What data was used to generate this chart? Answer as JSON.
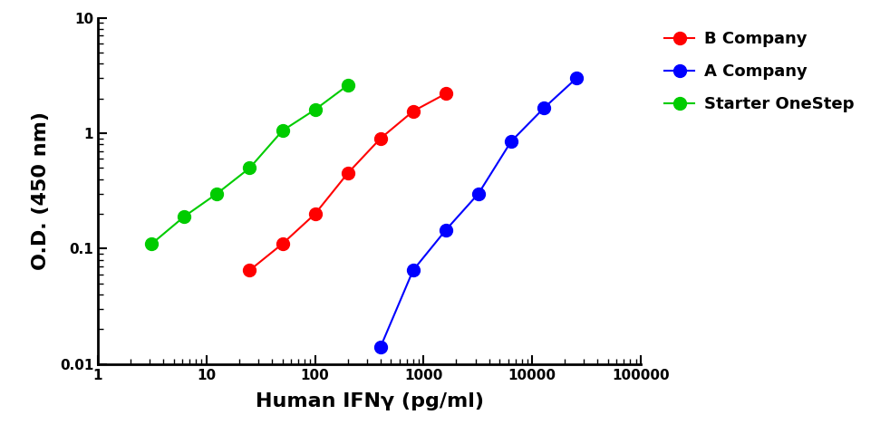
{
  "series": [
    {
      "label": "B Company",
      "color": "#FF0000",
      "x": [
        25,
        50,
        100,
        200,
        400,
        800,
        1600
      ],
      "y": [
        0.065,
        0.11,
        0.2,
        0.45,
        0.9,
        1.55,
        2.2
      ]
    },
    {
      "label": "A Company",
      "color": "#0000FF",
      "x": [
        400,
        800,
        1600,
        3200,
        6400,
        12800,
        25600
      ],
      "y": [
        0.014,
        0.065,
        0.145,
        0.3,
        0.85,
        1.65,
        3.0
      ]
    },
    {
      "label": "Starter OneStep",
      "color": "#00CC00",
      "x": [
        3.125,
        6.25,
        12.5,
        25,
        50,
        100,
        200
      ],
      "y": [
        0.11,
        0.19,
        0.3,
        0.5,
        1.05,
        1.6,
        2.6
      ]
    }
  ],
  "xlabel": "Human IFNγ (pg/ml)",
  "ylabel": "O.D. (450 nm)",
  "xlim": [
    1.5,
    100000
  ],
  "ylim": [
    0.01,
    10
  ],
  "background_color": "#FFFFFF",
  "legend_fontsize": 13,
  "axis_label_fontsize": 16,
  "tick_fontsize": 11,
  "marker_size": 10,
  "linewidth": 1.5
}
